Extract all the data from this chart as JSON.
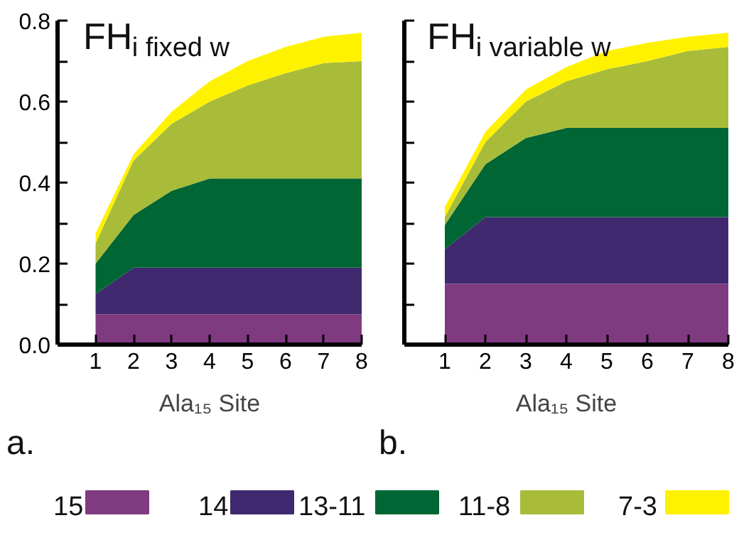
{
  "chart_data": [
    {
      "type": "area",
      "title": "FH$_{i fixed w}$",
      "xlabel": "Ala₁₅ Site",
      "annotations": [
        "a."
      ],
      "stacked": true,
      "legend": "bottom",
      "grid": false,
      "x": [
        1,
        2,
        3,
        4,
        5,
        6,
        7,
        8
      ],
      "xlim": [
        0,
        8
      ],
      "xticks": [
        1,
        2,
        3,
        4,
        5,
        6,
        7,
        8
      ],
      "ylim": [
        0,
        0.8
      ],
      "yticks": [
        {
          "value": 0,
          "label": "0.0"
        },
        {
          "value": 0.1,
          "label": null
        },
        0.2,
        {
          "value": 0.3,
          "label": null
        },
        0.4,
        {
          "value": 0.5,
          "label": null
        },
        0.6,
        {
          "value": 0.7,
          "label": null
        },
        0.8
      ],
      "series": [
        {
          "name": "15",
          "color": "#7f3a80",
          "values": [
            0.075,
            0.075,
            0.075,
            0.075,
            0.075,
            0.075,
            0.075,
            0.075
          ]
        },
        {
          "name": "14",
          "color": "#40296e",
          "values": [
            0.05,
            0.115,
            0.115,
            0.115,
            0.115,
            0.115,
            0.115,
            0.115
          ]
        },
        {
          "name": "13-11",
          "color": "#006633",
          "values": [
            0.075,
            0.13,
            0.19,
            0.22,
            0.22,
            0.22,
            0.22,
            0.22
          ]
        },
        {
          "name": "11-8",
          "color": "#a8bc3a",
          "values": [
            0.05,
            0.135,
            0.165,
            0.19,
            0.23,
            0.26,
            0.285,
            0.29
          ]
        },
        {
          "name": "7-3",
          "color": "#fff200",
          "values": [
            0.025,
            0.015,
            0.03,
            0.05,
            0.06,
            0.065,
            0.065,
            0.07
          ]
        }
      ]
    },
    {
      "type": "area",
      "title": "FH$_{i variable w}$",
      "xlabel": "Ala₁₅ Site",
      "annotations": [
        "b."
      ],
      "stacked": true,
      "legend": "bottom",
      "grid": false,
      "tick_labels": "x",
      "x": [
        1,
        2,
        3,
        4,
        5,
        6,
        7,
        8
      ],
      "xlim": [
        0,
        8
      ],
      "xticks": [
        1,
        2,
        3,
        4,
        5,
        6,
        7,
        8
      ],
      "ylim": [
        0,
        0.8
      ],
      "yticks": [
        0,
        0.1,
        0.2,
        0.3,
        0.4,
        0.5,
        0.6,
        0.7,
        0.8
      ],
      "series": [
        {
          "name": "15",
          "color": "#7f3a80",
          "values": [
            0.15,
            0.15,
            0.15,
            0.15,
            0.15,
            0.15,
            0.15,
            0.15
          ]
        },
        {
          "name": "14",
          "color": "#40296e",
          "values": [
            0.085,
            0.165,
            0.165,
            0.165,
            0.165,
            0.165,
            0.165,
            0.165
          ]
        },
        {
          "name": "13-11",
          "color": "#006633",
          "values": [
            0.06,
            0.13,
            0.195,
            0.22,
            0.22,
            0.22,
            0.22,
            0.22
          ]
        },
        {
          "name": "11-8",
          "color": "#a8bc3a",
          "values": [
            0.02,
            0.055,
            0.09,
            0.115,
            0.145,
            0.165,
            0.19,
            0.2
          ]
        },
        {
          "name": "7-3",
          "color": "#fff200",
          "values": [
            0.025,
            0.025,
            0.03,
            0.035,
            0.045,
            0.045,
            0.035,
            0.035
          ]
        }
      ]
    }
  ]
}
